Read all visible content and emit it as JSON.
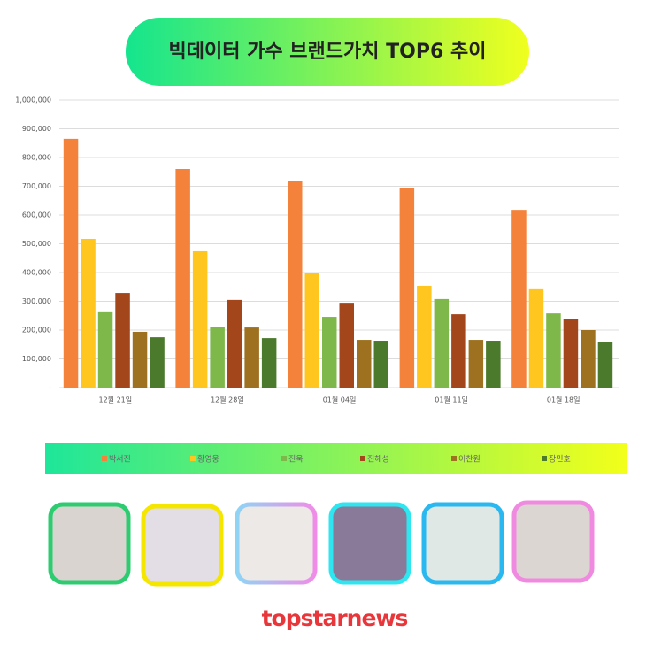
{
  "chart_data": {
    "type": "bar",
    "title": "빅데이터 가수 브랜드가치 TOP6 추이",
    "categories": [
      "12월 21일",
      "12월 28일",
      "01월 04일",
      "01월 11일",
      "01월 18일"
    ],
    "series": [
      {
        "name": "박서진",
        "color": "#f5823a",
        "values": [
          865000,
          760000,
          717000,
          695000,
          618000
        ]
      },
      {
        "name": "황영웅",
        "color": "#ffc61f",
        "values": [
          517000,
          474000,
          397000,
          354000,
          342000
        ]
      },
      {
        "name": "진욱",
        "color": "#7fb84a",
        "values": [
          262000,
          212000,
          246000,
          308000,
          258000
        ]
      },
      {
        "name": "진해성",
        "color": "#a3461b",
        "values": [
          329000,
          305000,
          295000,
          255000,
          240000
        ]
      },
      {
        "name": "이찬원",
        "color": "#9e7120",
        "values": [
          194000,
          209000,
          166000,
          166000,
          200000
        ]
      },
      {
        "name": "장민호",
        "color": "#4b7a2c",
        "values": [
          175000,
          172000,
          163000,
          163000,
          157000
        ]
      }
    ],
    "ylim": [
      0,
      1000000
    ],
    "yticks": [
      {
        "value": 0,
        "label": "-"
      },
      {
        "value": 100000,
        "label": "100,000"
      },
      {
        "value": 200000,
        "label": "200,000"
      },
      {
        "value": 300000,
        "label": "300,000"
      },
      {
        "value": 400000,
        "label": "400,000"
      },
      {
        "value": 500000,
        "label": "500,000"
      },
      {
        "value": 600000,
        "label": "600,000"
      },
      {
        "value": 700000,
        "label": "700,000"
      },
      {
        "value": 800000,
        "label": "800,000"
      },
      {
        "value": 900000,
        "label": "900,000"
      },
      {
        "value": 1000000,
        "label": "1,000,000"
      }
    ],
    "grid": true,
    "brand": "topstarnews"
  }
}
